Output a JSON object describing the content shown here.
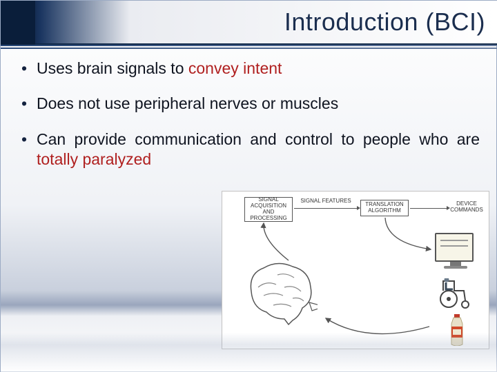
{
  "title": "Introduction (BCI)",
  "bullets": [
    {
      "pre": "Uses brain signals to ",
      "hl": "convey intent",
      "post": ""
    },
    {
      "pre": "Does not use peripheral nerves or muscles",
      "hl": "",
      "post": ""
    },
    {
      "pre": "Can provide communication and control to people who are ",
      "hl": "totally paralyzed",
      "post": ""
    }
  ],
  "diagram": {
    "boxes": {
      "acq": "SIGNAL\nACQUISITION\nAND\nPROCESSING",
      "trans": "TRANSLATION\nALGORITHM"
    },
    "labels": {
      "features": "SIGNAL FEATURES",
      "cmds": "DEVICE\nCOMMANDS"
    }
  },
  "colors": {
    "highlight": "#b02020",
    "title": "#1b2e4f",
    "header_dark": "#0a1e3a"
  }
}
